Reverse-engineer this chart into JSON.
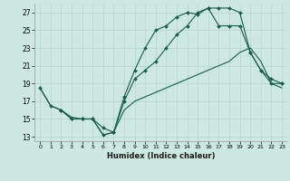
{
  "xlabel": "Humidex (Indice chaleur)",
  "xlim": [
    -0.5,
    23.5
  ],
  "ylim": [
    12.5,
    28.0
  ],
  "xticks": [
    0,
    1,
    2,
    3,
    4,
    5,
    6,
    7,
    8,
    9,
    10,
    11,
    12,
    13,
    14,
    15,
    16,
    17,
    18,
    19,
    20,
    21,
    22,
    23
  ],
  "yticks": [
    13,
    15,
    17,
    19,
    21,
    23,
    25,
    27
  ],
  "bg_color": "#cce8e0",
  "grid_color": "#b8d4cc",
  "line_color": "#1a5c4a",
  "line1_x": [
    0,
    1,
    2,
    3,
    4,
    5,
    6,
    7,
    8,
    9,
    10,
    11,
    12,
    13,
    14,
    15,
    16,
    17,
    18,
    19,
    20,
    21,
    22,
    23
  ],
  "line1_y": [
    18.5,
    16.5,
    16.0,
    15.0,
    15.0,
    15.0,
    13.2,
    13.5,
    17.5,
    20.5,
    23.0,
    25.0,
    25.5,
    26.5,
    27.0,
    26.8,
    27.5,
    25.5,
    25.5,
    25.5,
    22.5,
    20.5,
    19.5,
    19.0
  ],
  "line2_x": [
    2,
    3,
    4,
    5,
    6,
    7,
    8,
    9,
    10,
    11,
    12,
    13,
    14,
    15,
    16,
    17,
    18,
    19,
    20,
    21,
    22,
    23
  ],
  "line2_y": [
    16.0,
    15.0,
    15.0,
    15.0,
    14.0,
    13.5,
    17.0,
    19.5,
    20.5,
    21.5,
    23.0,
    24.5,
    25.5,
    27.0,
    27.5,
    27.5,
    27.5,
    27.0,
    22.5,
    20.5,
    19.0,
    19.0
  ],
  "line3_x": [
    0,
    1,
    2,
    3,
    4,
    5,
    6,
    7,
    8,
    9,
    10,
    11,
    12,
    13,
    14,
    15,
    16,
    17,
    18,
    19,
    20,
    21,
    22,
    23
  ],
  "line3_y": [
    18.5,
    16.5,
    16.0,
    15.2,
    15.0,
    15.0,
    13.2,
    13.5,
    16.0,
    17.0,
    17.5,
    18.0,
    18.5,
    19.0,
    19.5,
    20.0,
    20.5,
    21.0,
    21.5,
    22.5,
    23.0,
    21.5,
    19.0,
    18.5
  ]
}
